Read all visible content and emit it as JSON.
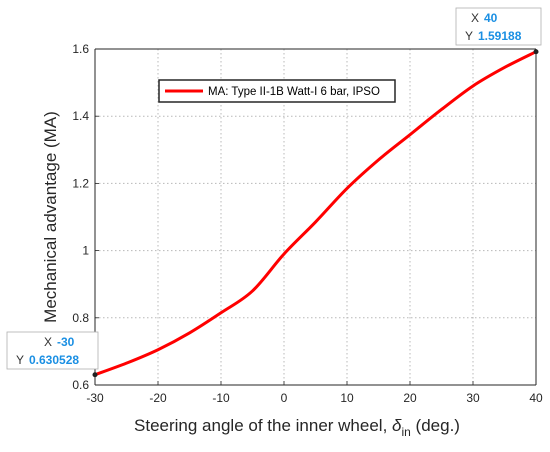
{
  "chart_data": {
    "type": "line",
    "xlabel_main": "Steering angle of the inner wheel, ",
    "xlabel_symbol": "δ",
    "xlabel_sub": "in",
    "xlabel_unit": " (deg.)",
    "ylabel": "Mechanical advantage (MA)",
    "xlim": [
      -30,
      40
    ],
    "ylim": [
      0.6,
      1.6
    ],
    "x_ticks": [
      "-30",
      "-20",
      "-10",
      "0",
      "10",
      "20",
      "30",
      "40"
    ],
    "y_ticks": [
      "0.6",
      "0.8",
      "1",
      "1.2",
      "1.4",
      "1.6"
    ],
    "grid": true,
    "legend_position": "top-center",
    "series": [
      {
        "name": "MA: Type II-1B Watt-I 6 bar, IPSO",
        "color": "#ff0000",
        "x": [
          -30,
          -25,
          -20,
          -15,
          -10,
          -5,
          0,
          5,
          10,
          15,
          20,
          25,
          30,
          35,
          40
        ],
        "y": [
          0.6305,
          0.665,
          0.705,
          0.755,
          0.815,
          0.88,
          0.99,
          1.085,
          1.185,
          1.27,
          1.345,
          1.42,
          1.49,
          1.545,
          1.5919
        ]
      }
    ],
    "datatips": [
      {
        "x_key": "X",
        "x_value": "-30",
        "y_key": "Y",
        "y_value": "0.630528",
        "x": -30,
        "y": 0.630528
      },
      {
        "x_key": "X",
        "x_value": "40",
        "y_key": "Y",
        "y_value": "1.59188",
        "x": 40,
        "y": 1.59188
      }
    ]
  }
}
